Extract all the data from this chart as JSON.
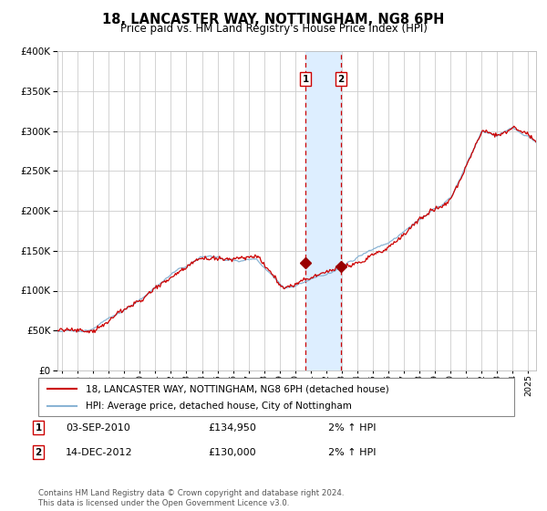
{
  "title": "18, LANCASTER WAY, NOTTINGHAM, NG8 6PH",
  "subtitle": "Price paid vs. HM Land Registry's House Price Index (HPI)",
  "legend_line1": "18, LANCASTER WAY, NOTTINGHAM, NG8 6PH (detached house)",
  "legend_line2": "HPI: Average price, detached house, City of Nottingham",
  "footer": "Contains HM Land Registry data © Crown copyright and database right 2024.\nThis data is licensed under the Open Government Licence v3.0.",
  "sale1_date": 2010.67,
  "sale1_price": 134950,
  "sale2_date": 2012.96,
  "sale2_price": 130000,
  "hpi_color": "#8ab4d4",
  "price_color": "#cc0000",
  "marker_color": "#990000",
  "vband_color": "#ddeeff",
  "vline_color": "#cc0000",
  "grid_color": "#cccccc",
  "bg_color": "#ffffff",
  "ylim": [
    0,
    400000
  ],
  "xlim_start": 1994.7,
  "xlim_end": 2025.5
}
